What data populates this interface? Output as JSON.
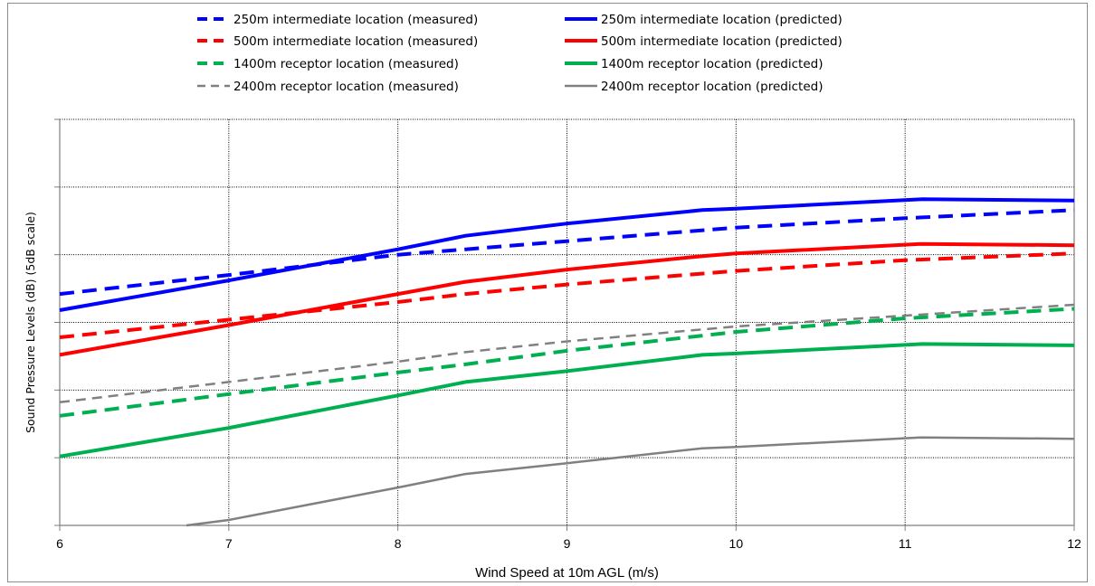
{
  "chart_data": {
    "type": "line",
    "title": "",
    "xlabel": "Wind Speed at 10m AGL (m/s)",
    "ylabel": "Sound Pressure Levels (dB)  (5dB scale)",
    "xlim": [
      6,
      12
    ],
    "ylim": [
      0,
      30
    ],
    "x_ticks": [
      "6",
      "7",
      "8",
      "9",
      "10",
      "11",
      "12"
    ],
    "y_ticks": [
      0,
      5,
      10,
      15,
      20,
      25,
      30
    ],
    "y_tick_labels_visible": false,
    "grid": "dotted",
    "legend_position": "top",
    "series": [
      {
        "name": "250m intermediate location (measured)",
        "color": "#0000ff",
        "style": "dashed",
        "width": 4,
        "points": [
          [
            6,
            17.1
          ],
          [
            7,
            18.5
          ],
          [
            8,
            20.0
          ],
          [
            8.4,
            20.4
          ],
          [
            9,
            21.0
          ],
          [
            10,
            22.0
          ],
          [
            11,
            22.7
          ],
          [
            12,
            23.3
          ]
        ]
      },
      {
        "name": "250m intermediate location (predicted)",
        "color": "#0000ff",
        "style": "solid",
        "width": 4,
        "points": [
          [
            6,
            15.9
          ],
          [
            7,
            18.1
          ],
          [
            8,
            20.4
          ],
          [
            8.4,
            21.4
          ],
          [
            9,
            22.3
          ],
          [
            9.8,
            23.3
          ],
          [
            10,
            23.4
          ],
          [
            11.1,
            24.1
          ],
          [
            12,
            24.0
          ]
        ]
      },
      {
        "name": "500m intermediate location (measured)",
        "color": "#ff0000",
        "style": "dashed",
        "width": 4,
        "points": [
          [
            6,
            13.9
          ],
          [
            7,
            15.2
          ],
          [
            8,
            16.5
          ],
          [
            8.4,
            17.1
          ],
          [
            9,
            17.8
          ],
          [
            10,
            18.8
          ],
          [
            11,
            19.6
          ],
          [
            12,
            20.1
          ]
        ]
      },
      {
        "name": "500m intermediate location (predicted)",
        "color": "#ff0000",
        "style": "solid",
        "width": 4,
        "points": [
          [
            6,
            12.6
          ],
          [
            7,
            14.8
          ],
          [
            8,
            17.1
          ],
          [
            8.4,
            18.0
          ],
          [
            9,
            18.9
          ],
          [
            9.8,
            19.9
          ],
          [
            10,
            20.1
          ],
          [
            11.1,
            20.8
          ],
          [
            12,
            20.7
          ]
        ]
      },
      {
        "name": "1400m receptor location (measured)",
        "color": "#00b050",
        "style": "dashed",
        "width": 4,
        "points": [
          [
            6,
            8.1
          ],
          [
            7,
            9.7
          ],
          [
            8,
            11.3
          ],
          [
            8.4,
            11.9
          ],
          [
            9,
            12.9
          ],
          [
            10,
            14.3
          ],
          [
            11,
            15.3
          ],
          [
            12,
            16.0
          ]
        ]
      },
      {
        "name": "1400m receptor location (predicted)",
        "color": "#00b050",
        "style": "solid",
        "width": 4,
        "points": [
          [
            6,
            5.1
          ],
          [
            7,
            7.2
          ],
          [
            8,
            9.6
          ],
          [
            8.4,
            10.6
          ],
          [
            9,
            11.4
          ],
          [
            9.8,
            12.6
          ],
          [
            10,
            12.7
          ],
          [
            11.1,
            13.4
          ],
          [
            12,
            13.3
          ]
        ]
      },
      {
        "name": "2400m receptor location (measured)",
        "color": "#808080",
        "style": "dashed",
        "width": 2.5,
        "points": [
          [
            6,
            9.1
          ],
          [
            7,
            10.6
          ],
          [
            8,
            12.1
          ],
          [
            8.4,
            12.8
          ],
          [
            9,
            13.6
          ],
          [
            10,
            14.7
          ],
          [
            11,
            15.5
          ],
          [
            12,
            16.3
          ]
        ]
      },
      {
        "name": "2400m receptor location (predicted)",
        "color": "#808080",
        "style": "solid",
        "width": 2.5,
        "points": [
          [
            6.75,
            0
          ],
          [
            7,
            0.4
          ],
          [
            8,
            2.8
          ],
          [
            8.4,
            3.8
          ],
          [
            9,
            4.6
          ],
          [
            9.8,
            5.7
          ],
          [
            10,
            5.8
          ],
          [
            11.1,
            6.5
          ],
          [
            12,
            6.4
          ]
        ]
      }
    ]
  }
}
